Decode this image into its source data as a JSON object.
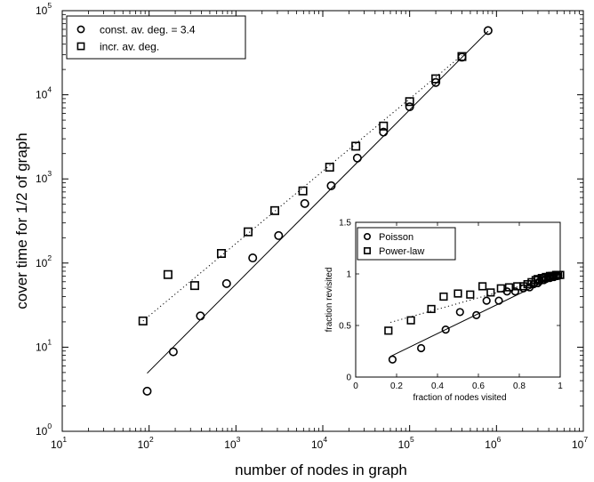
{
  "chart_data": [
    {
      "type": "scatter",
      "title": "",
      "xlabel": "number of nodes in graph",
      "ylabel": "cover time for 1/2 of graph",
      "xscale": "log",
      "yscale": "log",
      "xlim": [
        10,
        10000000
      ],
      "ylim": [
        1,
        100000
      ],
      "xticks": [
        {
          "base": "10",
          "exp": "1"
        },
        {
          "base": "10",
          "exp": "2"
        },
        {
          "base": "10",
          "exp": "3"
        },
        {
          "base": "10",
          "exp": "4"
        },
        {
          "base": "10",
          "exp": "5"
        },
        {
          "base": "10",
          "exp": "6"
        },
        {
          "base": "10",
          "exp": "7"
        }
      ],
      "yticks": [
        {
          "base": "10",
          "exp": "0"
        },
        {
          "base": "10",
          "exp": "1"
        },
        {
          "base": "10",
          "exp": "2"
        },
        {
          "base": "10",
          "exp": "3"
        },
        {
          "base": "10",
          "exp": "4"
        },
        {
          "base": "10",
          "exp": "5"
        }
      ],
      "legend_position": "top-left",
      "series": [
        {
          "name": "const. av. deg. = 3.4",
          "marker": "circle",
          "x": [
            95,
            190,
            390,
            780,
            1560,
            3100,
            6200,
            12500,
            25000,
            50000,
            100000,
            200000,
            400000,
            800000
          ],
          "y": [
            3,
            8.8,
            23.5,
            57,
            115,
            212,
            510,
            830,
            1770,
            3600,
            7200,
            14000,
            28000,
            58000
          ]
        },
        {
          "name": "incr. av. deg.",
          "marker": "square",
          "x": [
            85,
            165,
            335,
            680,
            1380,
            2800,
            5900,
            12000,
            24000,
            50000,
            100000,
            200000,
            400000
          ],
          "y": [
            20.5,
            73,
            54,
            130,
            235,
            420,
            720,
            1380,
            2450,
            4250,
            8300,
            15500,
            28500
          ]
        }
      ],
      "fit_lines": [
        {
          "style": "solid",
          "x": [
            95,
            800000
          ],
          "y": [
            4.9,
            57000
          ]
        },
        {
          "style": "dotted",
          "x": [
            85,
            400000
          ],
          "y": [
            20.5,
            29500
          ]
        }
      ]
    },
    {
      "type": "scatter",
      "title": "",
      "xlabel": "fraction of nodes visited",
      "ylabel": "fraction revisited",
      "xlim": [
        0,
        1
      ],
      "ylim": [
        0,
        1.5
      ],
      "xtick_labels": [
        "0",
        "0.2",
        "0.4",
        "0.6",
        "0.8",
        "1"
      ],
      "xtick_values": [
        0,
        0.2,
        0.4,
        0.6,
        0.8,
        1.0
      ],
      "ytick_labels": [
        "0",
        "0.5",
        "1",
        "1.5"
      ],
      "ytick_values": [
        0,
        0.5,
        1.0,
        1.5
      ],
      "legend_position": "top-left",
      "series": [
        {
          "name": "Poisson",
          "marker": "circle",
          "x": [
            0.18,
            0.32,
            0.44,
            0.51,
            0.59,
            0.64,
            0.7,
            0.74,
            0.78,
            0.82,
            0.85,
            0.87,
            0.89,
            0.9,
            0.92,
            0.93,
            0.94,
            0.95,
            0.96,
            0.97,
            0.98,
            0.99
          ],
          "y": [
            0.17,
            0.28,
            0.46,
            0.63,
            0.6,
            0.74,
            0.74,
            0.83,
            0.83,
            0.86,
            0.87,
            0.9,
            0.91,
            0.93,
            0.94,
            0.95,
            0.96,
            0.96,
            0.97,
            0.97,
            0.98,
            0.98
          ]
        },
        {
          "name": "Power-law",
          "marker": "square",
          "x": [
            0.16,
            0.27,
            0.37,
            0.43,
            0.5,
            0.56,
            0.62,
            0.66,
            0.71,
            0.75,
            0.79,
            0.82,
            0.84,
            0.86,
            0.88,
            0.89,
            0.91,
            0.92,
            0.93,
            0.94,
            0.95,
            0.96,
            0.97,
            0.98,
            0.99,
            1.0
          ],
          "y": [
            0.45,
            0.55,
            0.66,
            0.78,
            0.81,
            0.8,
            0.88,
            0.82,
            0.86,
            0.87,
            0.88,
            0.88,
            0.9,
            0.92,
            0.94,
            0.95,
            0.96,
            0.96,
            0.97,
            0.97,
            0.98,
            0.98,
            0.98,
            0.99,
            0.99,
            0.99
          ]
        }
      ],
      "fit_lines": [
        {
          "style": "solid",
          "x": [
            0.17,
            1.0
          ],
          "y": [
            0.2,
            1.0
          ]
        },
        {
          "style": "dotted",
          "x": [
            0.17,
            1.0
          ],
          "y": [
            0.53,
            0.99
          ]
        }
      ]
    }
  ]
}
